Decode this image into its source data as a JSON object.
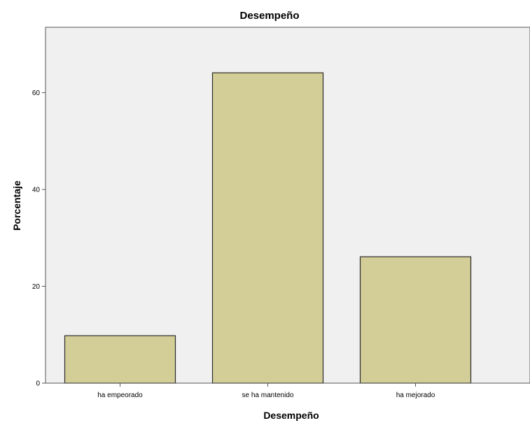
{
  "chart_data": {
    "type": "bar",
    "title": "Desempeño",
    "xlabel": "Desempeño",
    "ylabel": "Porcentaje",
    "categories": [
      "ha empeorado",
      "se ha mantenido",
      "ha mejorado"
    ],
    "values": [
      9.8,
      64.1,
      26.1
    ],
    "yticks": [
      0,
      20,
      40,
      60
    ],
    "ylim": [
      0,
      73.5
    ],
    "grid": false,
    "legend": "none",
    "colors": {
      "bar_fill": "#d3cd97",
      "bar_stroke": "#2b2b2b",
      "plot_background": "#f0f0f0",
      "axis": "#555555"
    }
  }
}
